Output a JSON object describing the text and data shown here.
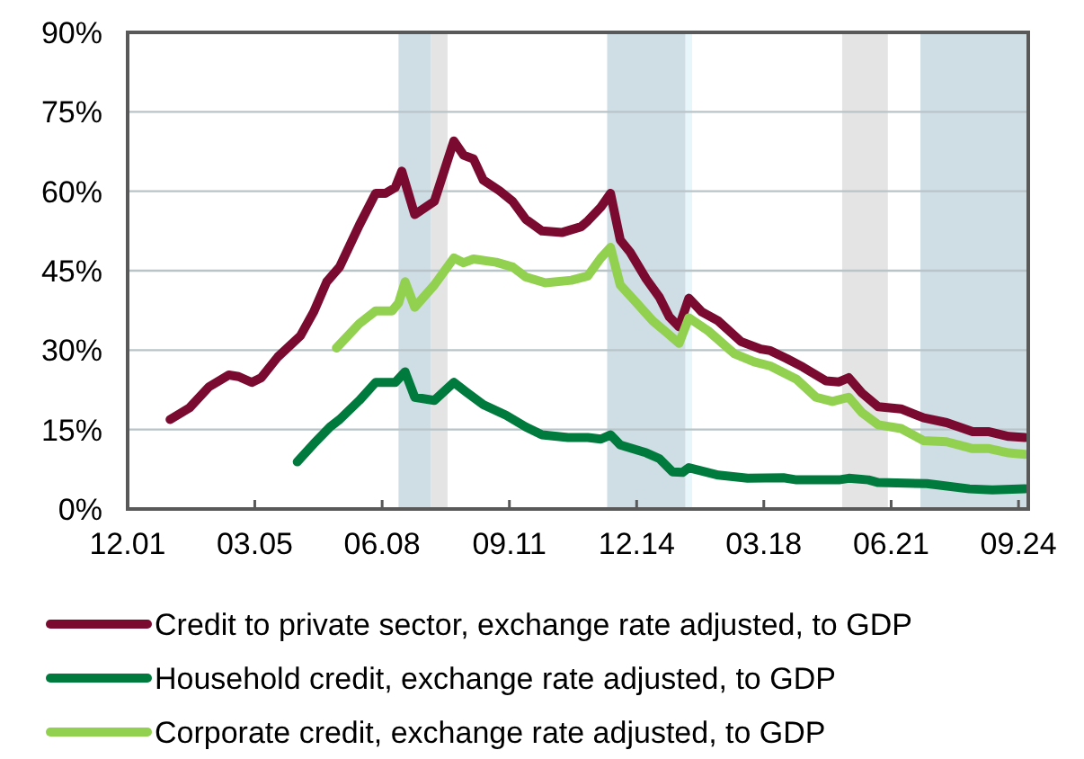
{
  "chart_data": {
    "type": "line",
    "xlim": [
      "2001-12",
      "2024-12"
    ],
    "xticks": [
      {
        "value": "2001-12",
        "label": "12.01"
      },
      {
        "value": "2005-03",
        "label": "03.05"
      },
      {
        "value": "2008-06",
        "label": "06.08"
      },
      {
        "value": "2011-09",
        "label": "09.11"
      },
      {
        "value": "2014-12",
        "label": "12.14"
      },
      {
        "value": "2018-03",
        "label": "03.18"
      },
      {
        "value": "2021-06",
        "label": "06.21"
      },
      {
        "value": "2024-09",
        "label": "09.24"
      }
    ],
    "ylim": [
      0,
      90
    ],
    "yticks": [
      {
        "value": 0,
        "label": "0%"
      },
      {
        "value": 15,
        "label": "15%"
      },
      {
        "value": 30,
        "label": "30%"
      },
      {
        "value": 45,
        "label": "45%"
      },
      {
        "value": 60,
        "label": "60%"
      },
      {
        "value": 75,
        "label": "75%"
      },
      {
        "value": 90,
        "label": "90%"
      }
    ],
    "grid": "y",
    "legend": "bottom",
    "line_style": "solid",
    "marker": "none",
    "bands": [
      {
        "axis": "x",
        "from": "2008-11",
        "to": "2009-09",
        "color": "#cfdde5"
      },
      {
        "axis": "x",
        "from": "2009-09",
        "to": "2010-02",
        "color": "#e4e4e4"
      },
      {
        "axis": "x",
        "from": "2014-03",
        "to": "2016-03",
        "color": "#cfdde5"
      },
      {
        "axis": "x",
        "from": "2016-03",
        "to": "2016-05",
        "color": "#e6f6fb"
      },
      {
        "axis": "x",
        "from": "2020-03",
        "to": "2021-05",
        "color": "#e4e4e4"
      },
      {
        "axis": "x",
        "from": "2022-03",
        "to": "2024-12",
        "color": "#cfdde5"
      }
    ],
    "series": [
      {
        "name": "Credit to private sector, exchange rate adjusted, to GDP",
        "color": "#7b0a30",
        "x": [
          "2003-01",
          "2003-07",
          "2004-01",
          "2004-07",
          "2004-10",
          "2005-02",
          "2005-05",
          "2005-10",
          "2006-05",
          "2006-09",
          "2007-01",
          "2007-05",
          "2007-11",
          "2008-04",
          "2008-07",
          "2008-10",
          "2008-12",
          "2009-04",
          "2009-10",
          "2010-04",
          "2010-07",
          "2010-10",
          "2011-01",
          "2011-06",
          "2011-10",
          "2012-02",
          "2012-07",
          "2013-01",
          "2013-07",
          "2013-09",
          "2014-01",
          "2014-04",
          "2014-07",
          "2014-10",
          "2015-03",
          "2015-07",
          "2015-10",
          "2016-01",
          "2016-04",
          "2016-08",
          "2017-01",
          "2017-08",
          "2018-02",
          "2018-05",
          "2018-10",
          "2019-03",
          "2019-10",
          "2020-02",
          "2020-05",
          "2020-09",
          "2021-02",
          "2021-09",
          "2022-04",
          "2022-11",
          "2023-07",
          "2023-12",
          "2024-06",
          "2024-11"
        ],
        "values": [
          16.9,
          19.1,
          23.1,
          25.3,
          25.0,
          23.9,
          24.8,
          28.7,
          32.7,
          37.2,
          42.9,
          45.7,
          53.6,
          59.6,
          59.6,
          60.7,
          63.8,
          55.6,
          58.1,
          69.5,
          66.8,
          66.1,
          62.1,
          60.1,
          58.1,
          54.7,
          52.5,
          52.2,
          53.3,
          54.4,
          57.0,
          59.6,
          50.8,
          48.5,
          43.4,
          40.0,
          36.3,
          34.4,
          39.8,
          37.2,
          35.5,
          31.6,
          30.2,
          29.9,
          28.4,
          26.8,
          24.2,
          24.0,
          24.8,
          21.9,
          19.3,
          18.9,
          17.2,
          16.3,
          14.6,
          14.6,
          13.7,
          13.5
        ]
      },
      {
        "name": "Household credit, exchange rate adjusted, to GDP",
        "color": "#007a3d",
        "x": [
          "2006-04",
          "2006-09",
          "2007-02",
          "2007-05",
          "2007-11",
          "2008-04",
          "2008-10",
          "2009-01",
          "2009-04",
          "2009-10",
          "2010-04",
          "2010-08",
          "2011-01",
          "2011-08",
          "2012-02",
          "2012-07",
          "2013-03",
          "2013-09",
          "2014-01",
          "2014-04",
          "2014-07",
          "2015-03",
          "2015-07",
          "2015-11",
          "2016-02",
          "2016-04",
          "2017-01",
          "2017-10",
          "2018-09",
          "2019-01",
          "2020-02",
          "2020-05",
          "2020-11",
          "2021-02",
          "2022-05",
          "2023-06",
          "2024-01",
          "2024-11"
        ],
        "values": [
          8.9,
          12.3,
          15.5,
          16.9,
          20.5,
          23.9,
          23.9,
          25.9,
          21.1,
          20.5,
          23.9,
          22.0,
          19.7,
          17.7,
          15.5,
          14.0,
          13.5,
          13.5,
          13.2,
          14.0,
          12.1,
          10.6,
          9.5,
          7.0,
          6.9,
          7.8,
          6.4,
          5.8,
          5.9,
          5.5,
          5.5,
          5.8,
          5.5,
          5.0,
          4.8,
          3.8,
          3.6,
          3.8
        ]
      },
      {
        "name": "Corporate credit, exchange rate adjusted, to GDP",
        "color": "#92d050",
        "x": [
          "2007-04",
          "2007-11",
          "2008-04",
          "2008-09",
          "2008-11",
          "2009-01",
          "2009-04",
          "2009-10",
          "2010-04",
          "2010-07",
          "2010-10",
          "2011-05",
          "2011-10",
          "2012-02",
          "2012-08",
          "2013-04",
          "2013-09",
          "2014-01",
          "2014-04",
          "2014-07",
          "2014-12",
          "2015-05",
          "2015-10",
          "2016-01",
          "2016-04",
          "2016-10",
          "2017-06",
          "2017-12",
          "2018-05",
          "2019-01",
          "2019-07",
          "2019-12",
          "2020-05",
          "2020-09",
          "2021-02",
          "2021-09",
          "2022-04",
          "2022-11",
          "2023-07",
          "2023-12",
          "2024-06",
          "2024-11"
        ],
        "values": [
          30.4,
          35.0,
          37.4,
          37.4,
          38.9,
          42.9,
          38.1,
          42.3,
          47.4,
          46.5,
          47.2,
          46.6,
          45.7,
          43.8,
          42.7,
          43.2,
          44.0,
          47.4,
          49.4,
          42.3,
          38.9,
          35.5,
          32.9,
          31.3,
          36.1,
          33.6,
          29.3,
          27.8,
          27.0,
          24.5,
          21.1,
          20.3,
          21.1,
          18.2,
          15.9,
          15.2,
          12.9,
          12.7,
          11.4,
          11.4,
          10.6,
          10.3
        ]
      }
    ]
  }
}
